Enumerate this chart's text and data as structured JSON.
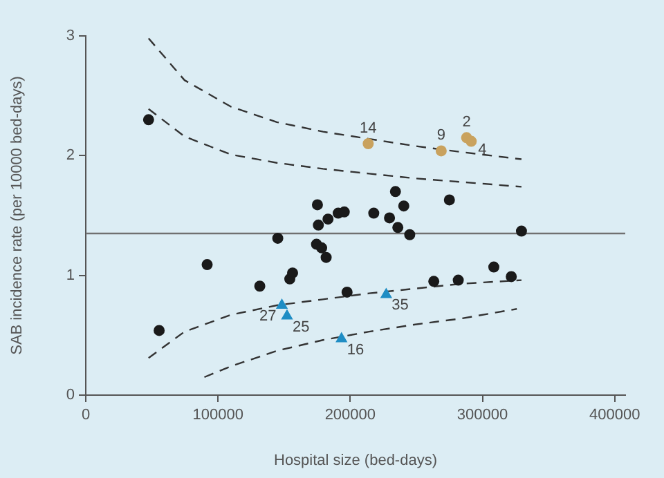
{
  "chart_data": {
    "type": "scatter",
    "xlabel": "Hospital size (bed-days)",
    "ylabel": "SAB incidence rate (per 10000 bed-days)",
    "xlim": [
      0,
      408000
    ],
    "xticks": [
      0,
      100000,
      200000,
      300000,
      400000
    ],
    "ylim": [
      0,
      3
    ],
    "yticks": [
      0,
      1,
      2,
      3
    ],
    "grid": false,
    "legend": false,
    "series": [
      {
        "color": "#1a1a1a",
        "marker": "circle",
        "x": [
          47500,
          55500,
          91800,
          131600,
          145200,
          154300,
          156400,
          175200,
          175900,
          174500,
          178400,
          181800,
          183200,
          190900,
          195500,
          197600,
          217800,
          229700,
          234200,
          236000,
          240500,
          245000,
          263200,
          275000,
          281700,
          308600,
          321800,
          329500
        ],
        "values": [
          2.3,
          0.54,
          1.09,
          0.91,
          1.31,
          0.97,
          1.02,
          1.59,
          1.42,
          1.26,
          1.23,
          1.15,
          1.47,
          1.52,
          1.53,
          0.86,
          1.52,
          1.48,
          1.7,
          1.4,
          1.58,
          1.34,
          0.95,
          1.63,
          0.96,
          1.07,
          0.99,
          1.37
        ]
      },
      {
        "color": "#c9a25e",
        "marker": "circle",
        "x": [
          213600,
          268800,
          288000,
          291500
        ],
        "values": [
          2.1,
          2.04,
          2.15,
          2.12
        ]
      },
      {
        "color": "#1f8dc4",
        "marker": "triangle",
        "x": [
          148300,
          152200,
          193400,
          227200
        ],
        "values": [
          0.75,
          0.66,
          0.47,
          0.84
        ]
      },
      {
        "type": "line",
        "color": "#333333",
        "line_style": "dashed",
        "marker": "none",
        "x": [
          47500,
          74700,
          109600,
          144500,
          179400,
          214300,
          249200,
          284100,
          329500
        ],
        "values": [
          2.98,
          2.63,
          2.41,
          2.28,
          2.2,
          2.14,
          2.08,
          2.03,
          1.97
        ]
      },
      {
        "type": "line",
        "color": "#333333",
        "line_style": "dashed",
        "marker": "none",
        "x": [
          47500,
          74700,
          109600,
          144500,
          179400,
          214300,
          249200,
          284100,
          329500
        ],
        "values": [
          2.39,
          2.16,
          2.01,
          1.94,
          1.89,
          1.85,
          1.81,
          1.78,
          1.74
        ]
      },
      {
        "type": "line",
        "color": "#333333",
        "line_style": "dashed",
        "marker": "none",
        "x": [
          47500,
          74700,
          109600,
          144500,
          179400,
          214300,
          249200,
          284100,
          329500
        ],
        "values": [
          0.31,
          0.53,
          0.67,
          0.75,
          0.8,
          0.85,
          0.89,
          0.93,
          0.96
        ]
      },
      {
        "type": "line",
        "color": "#333333",
        "line_style": "dashed",
        "marker": "none",
        "x": [
          89700,
          109600,
          144500,
          179400,
          214300,
          249200,
          284100,
          326000
        ],
        "values": [
          0.15,
          0.24,
          0.37,
          0.46,
          0.53,
          0.59,
          0.64,
          0.72
        ]
      }
    ],
    "ref_lines": [
      {
        "axis": "y",
        "value": 1.35,
        "color": "#707070"
      }
    ],
    "annotations": [
      {
        "text": "14",
        "x": 213600,
        "y": 2.1
      },
      {
        "text": "9",
        "x": 268800,
        "y": 2.04
      },
      {
        "text": "2",
        "x": 288000,
        "y": 2.15
      },
      {
        "text": "4",
        "x": 291500,
        "y": 2.12
      },
      {
        "text": "27",
        "x": 148300,
        "y": 0.75
      },
      {
        "text": "25",
        "x": 152200,
        "y": 0.66
      },
      {
        "text": "16",
        "x": 193400,
        "y": 0.47
      },
      {
        "text": "35",
        "x": 227200,
        "y": 0.84
      }
    ]
  }
}
